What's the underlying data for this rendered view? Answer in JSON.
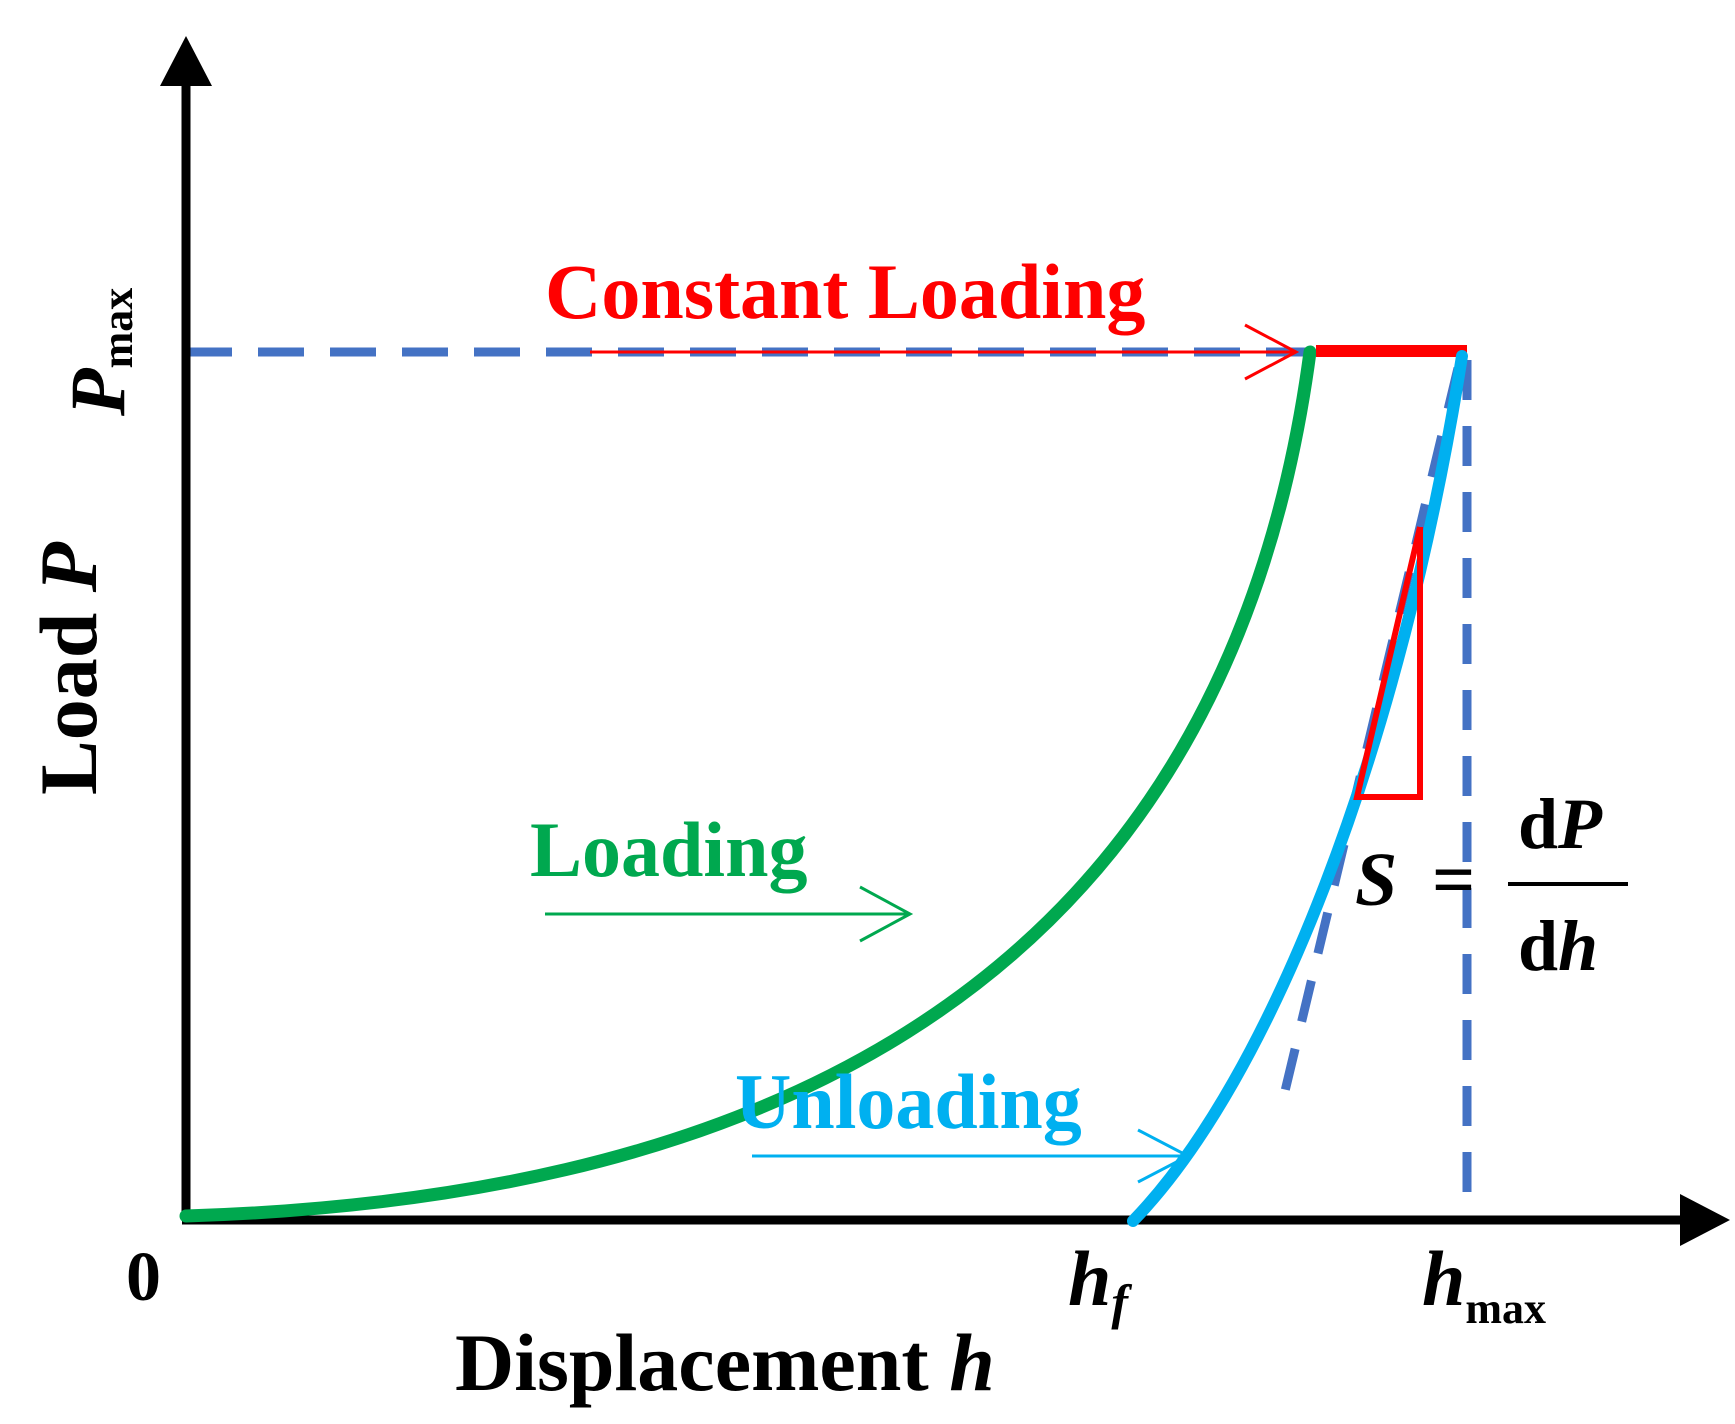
{
  "figure": {
    "origin_label": "0",
    "x_axis": {
      "label_text": "Displacement ",
      "label_var": "h"
    },
    "y_axis": {
      "label_text": "Load ",
      "label_var": "P"
    },
    "p_max": {
      "var": "P",
      "sub": "max"
    },
    "h_f": {
      "var": "h",
      "sub": "f"
    },
    "h_max": {
      "var": "h",
      "sub": "max"
    },
    "annotations": {
      "constant_loading": "Constant Loading",
      "loading": "Loading",
      "unloading": "Unloading"
    },
    "stiffness_formula": {
      "lhs": "S",
      "equals": "=",
      "numerator_d": "d",
      "numerator_var": "P",
      "denominator_d": "d",
      "denominator_var": "h"
    },
    "colors": {
      "axes": "#000000",
      "loading_curve": "#00A84F",
      "unloading_curve": "#00B0F0",
      "constant_loading": "#FF0000",
      "reference_dashed": "#4472C4",
      "slope_triangle": "#FF0000"
    }
  }
}
